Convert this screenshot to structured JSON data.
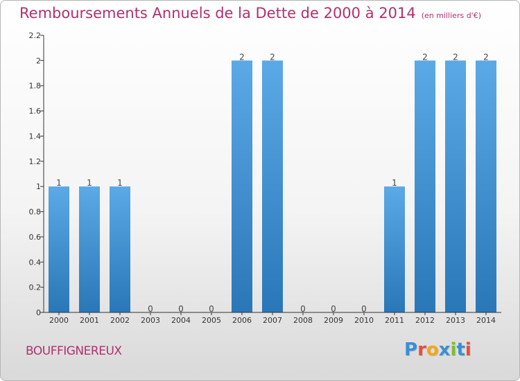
{
  "header": {
    "title": "Remboursements Annuels de la Dette de 2000 à 2014",
    "subtitle": "(en milliers d'€)"
  },
  "footer": {
    "commune": "BOUFFIGNEREUX",
    "logo": "Proxiti",
    "logo_colors": [
      "#3a8fd6",
      "#e84c3d",
      "#f2a71b",
      "#3a8fd6",
      "#7bbf2e",
      "#3a8fd6",
      "#e84c3d"
    ]
  },
  "colors": {
    "title": "#b0306e",
    "bar_top": "#5ba9e6",
    "bar_bottom": "#2a77b8",
    "axis": "#333333"
  },
  "chart_data": {
    "type": "bar",
    "title": "Remboursements Annuels de la Dette de 2000 à 2014",
    "subtitle": "(en milliers d'€)",
    "categories": [
      "2000",
      "2001",
      "2002",
      "2003",
      "2004",
      "2005",
      "2006",
      "2007",
      "2008",
      "2009",
      "2010",
      "2011",
      "2012",
      "2013",
      "2014"
    ],
    "values": [
      1,
      1,
      1,
      0,
      0,
      0,
      2,
      2,
      0,
      0,
      0,
      1,
      2,
      2,
      2
    ],
    "value_labels": [
      "1",
      "1",
      "1",
      "0",
      "0",
      "0",
      "2",
      "2",
      "0",
      "0",
      "0",
      "1",
      "2",
      "2",
      "2"
    ],
    "yticks": [
      "0",
      "0.2",
      "0.4",
      "0.6",
      "0.8",
      "1",
      "1.2",
      "1.4",
      "1.6",
      "1.8",
      "2",
      "2.2"
    ],
    "ytick_values": [
      0,
      0.2,
      0.4,
      0.6,
      0.8,
      1,
      1.2,
      1.4,
      1.6,
      1.8,
      2,
      2.2
    ],
    "ylim": [
      0,
      2.2
    ],
    "grid": false,
    "legend": "none"
  }
}
